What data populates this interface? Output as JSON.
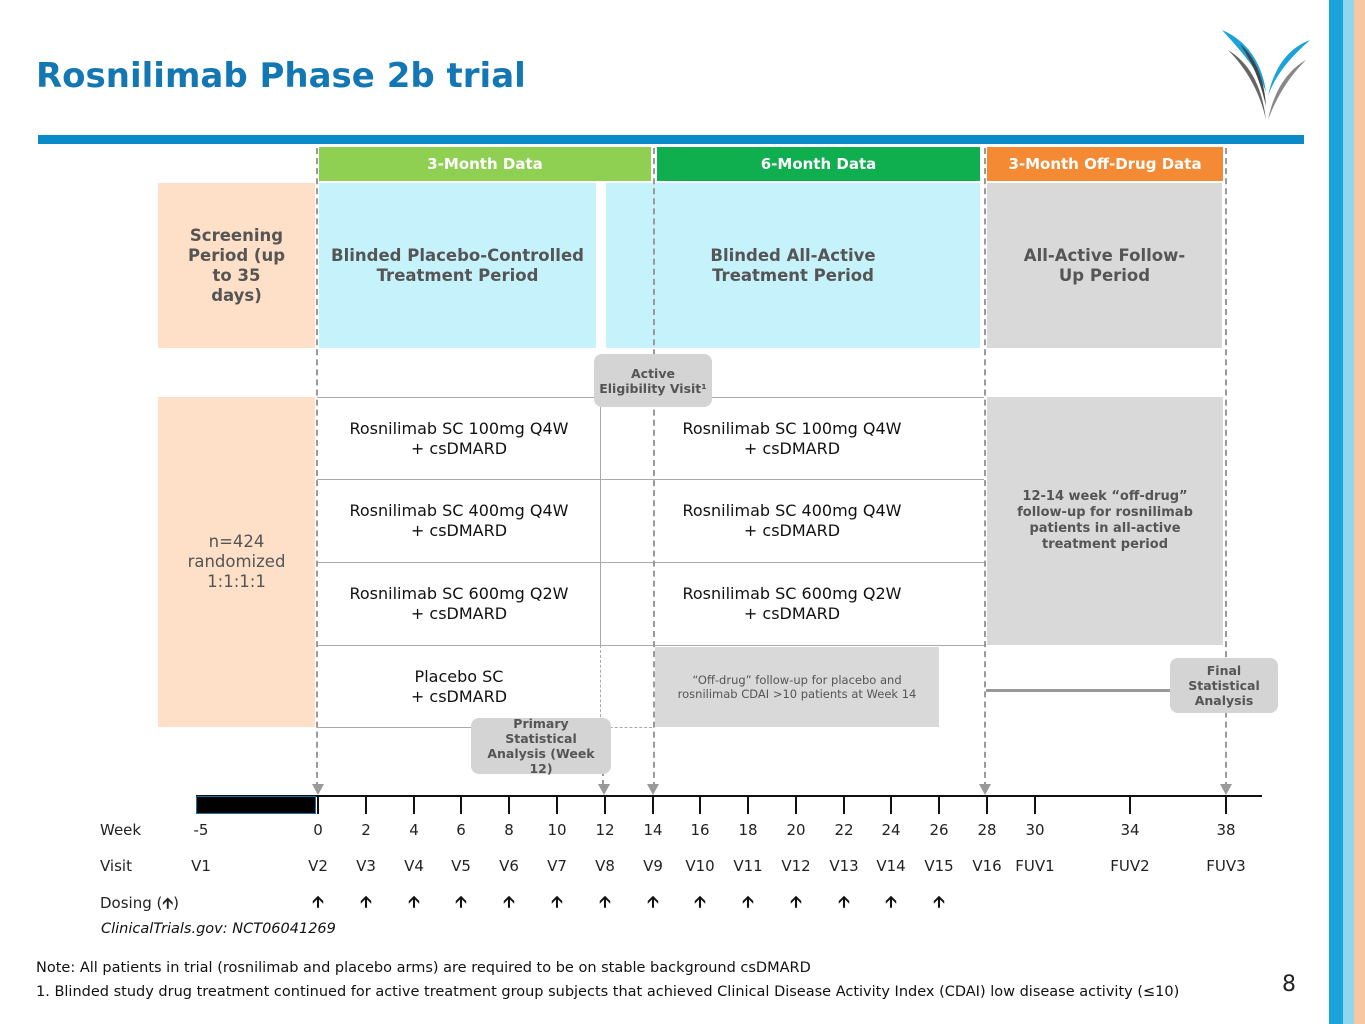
{
  "title": "Rosnilimab Phase 2b trial",
  "headers": {
    "three_month": "3-Month Data",
    "six_month": "6-Month Data",
    "off_drug": "3-Month Off-Drug Data"
  },
  "periods": {
    "screening": "Screening Period (up to 35 days)",
    "blinded_placebo": "Blinded Placebo-Controlled Treatment Period",
    "blinded_active": "Blinded All-Active Treatment Period",
    "followup": "All-Active Follow-Up Period"
  },
  "randomized": "n=424 randomized 1:1:1:1",
  "eligibility": "Active Eligibility Visit¹",
  "arms_left": [
    {
      "line1": "Rosnilimab SC 100mg Q4W",
      "line2": "+ csDMARD"
    },
    {
      "line1": "Rosnilimab SC 400mg Q4W",
      "line2": "+ csDMARD"
    },
    {
      "line1": "Rosnilimab SC 600mg Q2W",
      "line2": "+ csDMARD"
    },
    {
      "line1": "Placebo SC",
      "line2": "+ csDMARD"
    }
  ],
  "arms_right": [
    {
      "line1": "Rosnilimab SC 100mg Q4W",
      "line2": "+ csDMARD"
    },
    {
      "line1": "Rosnilimab SC 400mg Q4W",
      "line2": "+ csDMARD"
    },
    {
      "line1": "Rosnilimab SC 600mg Q2W",
      "line2": "+ csDMARD"
    }
  ],
  "offdrug_placebo": "“Off-drug” follow-up for placebo and rosnilimab CDAI >10 patients at Week 14",
  "offdrug_followup": "12-14 week “off-drug” follow-up for rosnilimab patients in all-active treatment period",
  "primary_analysis": "Primary Statistical Analysis (Week 12)",
  "final_analysis": "Final Statistical Analysis",
  "row_labels": {
    "week": "Week",
    "visit": "Visit",
    "dosing": "Dosing (",
    "dosing_arrow": "🡩",
    "dosing_end": ")"
  },
  "weeks": [
    "-5",
    "0",
    "2",
    "4",
    "6",
    "8",
    "10",
    "12",
    "14",
    "16",
    "18",
    "20",
    "22",
    "24",
    "26",
    "28",
    "30",
    "34",
    "38"
  ],
  "visits": [
    "V1",
    "V2",
    "V3",
    "V4",
    "V5",
    "V6",
    "V7",
    "V8",
    "V9",
    "V10",
    "V11",
    "V12",
    "V13",
    "V14",
    "V15",
    "V16",
    "FUV1",
    "FUV2",
    "FUV3"
  ],
  "dosing_weeks": [
    "0",
    "2",
    "4",
    "6",
    "8",
    "10",
    "12",
    "14",
    "16",
    "18",
    "20",
    "22",
    "24",
    "26"
  ],
  "dosing_glyph": "🡩",
  "registry": "ClinicalTrials.gov:  NCT06041269",
  "note": "Note: All patients in trial (rosnilimab and placebo arms) are required to be on stable background csDMARD",
  "footnote": "1. Blinded study drug treatment continued for active treatment group subjects that achieved Clinical Disease Activity Index (CDAI) low disease activity (≤10)",
  "page_number": "8",
  "colors": {
    "title": "#1377b3",
    "three_month": "#8fd053",
    "six_month": "#0fae4f",
    "off_drug": "#f58a35",
    "screening": "#fde0c7",
    "treatment": "#c6f3fb",
    "gray": "#d9d9d9"
  }
}
